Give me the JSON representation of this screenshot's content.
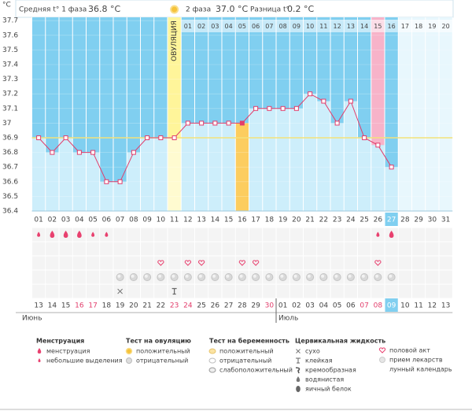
{
  "chart_data": {
    "type": "line",
    "header": {
      "phase1_label": "Средняя t° 1 фаза",
      "phase1_value": "36.8 °C",
      "phase2_label": "2 фаза",
      "phase2_value": "37.0 °C",
      "diff_label": "Разница t°",
      "diff_value": "0.2 °C"
    },
    "y_unit": "°C",
    "ylim": [
      36.4,
      37.8
    ],
    "yticks": [
      36.4,
      36.5,
      36.6,
      36.7,
      36.8,
      36.9,
      37,
      37.1,
      37.2,
      37.3,
      37.4,
      37.5,
      37.6,
      37.7
    ],
    "ovulation_label": "ОВУЛЯЦИЯ",
    "ovulation_day": 11,
    "cover_line": 36.9,
    "categories": [
      "01",
      "02",
      "03",
      "04",
      "05",
      "06",
      "07",
      "08",
      "09",
      "10",
      "11",
      "12",
      "13",
      "14",
      "15",
      "16",
      "17",
      "18",
      "19",
      "20",
      "21",
      "22",
      "23",
      "24",
      "25",
      "26",
      "27",
      "28",
      "29",
      "30",
      "31"
    ],
    "phase2_days": [
      "01",
      "02",
      "03",
      "04",
      "05",
      "06",
      "07",
      "08",
      "09",
      "10",
      "11",
      "12",
      "13",
      "14",
      "15",
      "16",
      "17",
      "18",
      "19",
      "20"
    ],
    "color": "#e23d6b",
    "values": [
      36.9,
      36.8,
      36.9,
      36.8,
      36.8,
      36.6,
      36.6,
      36.8,
      36.9,
      36.9,
      36.9,
      37.0,
      37.0,
      37.0,
      37.0,
      37.0,
      37.1,
      37.1,
      37.1,
      37.1,
      37.2,
      37.15,
      37.0,
      37.15,
      36.9,
      36.85,
      36.7,
      null,
      null,
      null,
      null
    ],
    "today": 27,
    "highlight_day": 16,
    "pink_day": 26,
    "menstruation_days": [
      2,
      3,
      4,
      27
    ],
    "spotting_days": [
      1,
      5,
      6,
      26
    ],
    "intercourse_days": [
      10,
      12,
      13,
      16,
      17,
      26
    ],
    "lunar_days": [
      7,
      8,
      9,
      10,
      11,
      12,
      13,
      14,
      15,
      16,
      17,
      18,
      19,
      20,
      21,
      22,
      23,
      24,
      25,
      26,
      27
    ],
    "dry_days": [
      7
    ],
    "sticky_days": [
      11
    ],
    "dates": [
      "13",
      "14",
      "15",
      "16",
      "17",
      "18",
      "19",
      "20",
      "21",
      "22",
      "23",
      "24",
      "25",
      "26",
      "27",
      "28",
      "29",
      "30",
      "01",
      "02",
      "03",
      "04",
      "05",
      "06",
      "07",
      "08",
      "09",
      "10",
      "11",
      "12",
      "13"
    ],
    "weekend_dates": [
      3,
      4,
      10,
      11,
      17,
      24,
      25
    ],
    "months": [
      "Июнь",
      "Июль"
    ],
    "month_start": 18,
    "legend": {
      "menstruation": {
        "title": "Менструация",
        "items": [
          "менструация",
          "небольшие выделения"
        ]
      },
      "ovulation_test": {
        "title": "Тест на овуляцию",
        "items": [
          "положительный",
          "отрицательный"
        ]
      },
      "pregnancy_test": {
        "title": "Тест на беременность",
        "items": [
          "положительный",
          "отрицательный",
          "слабоположительный"
        ]
      },
      "cervical": {
        "title": "Цервикальная жидкость",
        "items": [
          "сухо",
          "клейкая",
          "кремообразная",
          "водянистая",
          "яичный белок"
        ]
      },
      "other": {
        "items": [
          "половой акт",
          "прием лекарств",
          "лунный календарь"
        ]
      }
    }
  }
}
